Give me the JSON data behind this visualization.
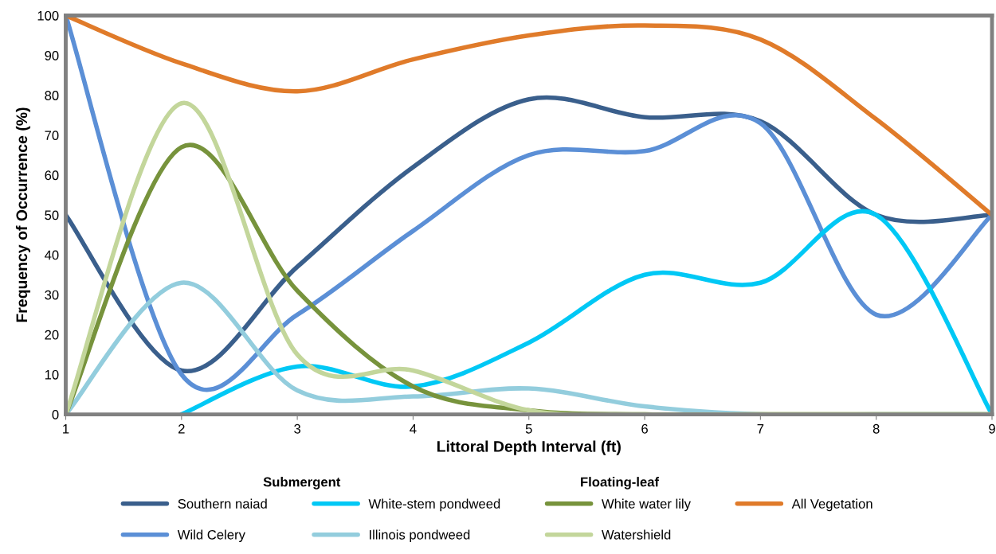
{
  "chart_data": {
    "type": "line",
    "xlabel": "Littoral Depth Interval (ft)",
    "ylabel": "Frequency of Occurrence (%)",
    "x": [
      1,
      2,
      3,
      4,
      5,
      6,
      7,
      8,
      9
    ],
    "series": [
      {
        "name": "Southern naiad",
        "color": "#3a5f8c",
        "values": [
          50,
          11,
          37,
          62,
          79,
          74.5,
          73.5,
          50,
          50
        ]
      },
      {
        "name": "Wild Celery",
        "color": "#5b8fd6",
        "values": [
          100,
          10,
          25,
          46,
          65,
          66,
          73,
          25,
          50
        ]
      },
      {
        "name": "White-stem pondweed",
        "color": "#00c8f5",
        "values": [
          null,
          0,
          12,
          7,
          18,
          35,
          33,
          50,
          0
        ]
      },
      {
        "name": "Illinois pondweed",
        "color": "#93cddd",
        "values": [
          0,
          33,
          6,
          4.5,
          6.5,
          2,
          0,
          0,
          0
        ]
      },
      {
        "name": "White water lily",
        "color": "#77933c",
        "values": [
          0,
          67,
          31,
          7,
          1,
          0,
          0,
          0,
          0
        ]
      },
      {
        "name": "Watershield",
        "color": "#c3d69b",
        "values": [
          0,
          78,
          15,
          11,
          1,
          0,
          0,
          0,
          0
        ]
      },
      {
        "name": "All Vegetation",
        "color": "#e07b2a",
        "values": [
          100,
          88,
          81,
          89,
          95,
          97.5,
          94,
          74,
          50
        ]
      }
    ],
    "annotations": [
      "Submergent",
      "Floating-leaf"
    ],
    "xlim": [
      1,
      9
    ],
    "xticks": [
      1,
      2,
      3,
      4,
      5,
      6,
      7,
      8,
      9
    ],
    "ylim": [
      0,
      100
    ],
    "yticks": [
      0,
      10,
      20,
      30,
      40,
      50,
      60,
      70,
      80,
      90,
      100
    ],
    "grid": false,
    "legend": "bottom",
    "marker": "none",
    "line_style": "solid"
  }
}
